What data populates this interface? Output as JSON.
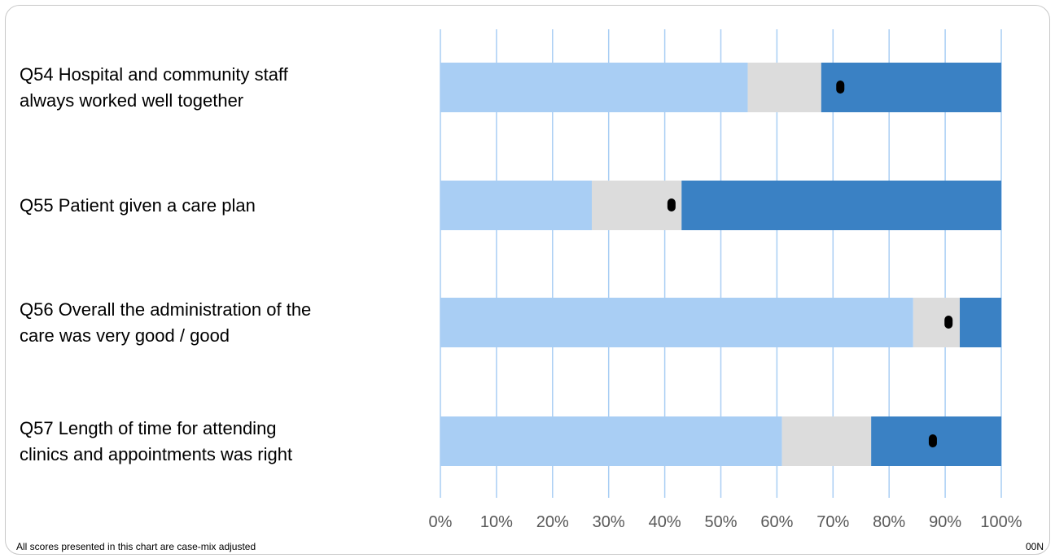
{
  "chart_data": {
    "type": "bar",
    "orientation": "horizontal",
    "stacked": true,
    "categories": [
      "Q54 Hospital and community staff\nalways worked well together",
      "Q55 Patient given a care plan",
      "Q56 Overall the administration of the\ncare was very good / good",
      "Q57 Length of time for attending\nclinics and appointments was right"
    ],
    "segments": [
      {
        "values": [
          54.8,
          27.0,
          84.3,
          60.9
        ],
        "color": "#a9cef4"
      },
      {
        "values": [
          13.1,
          16.0,
          8.3,
          15.9
        ],
        "color": "#dcdcdc"
      },
      {
        "values": [
          32.1,
          57.0,
          7.4,
          23.2
        ],
        "color": "#3a81c4"
      }
    ],
    "markers": [
      71.3,
      41.2,
      90.6,
      87.8
    ],
    "xlim": [
      0,
      100
    ],
    "x_ticks": [
      "0%",
      "10%",
      "20%",
      "30%",
      "40%",
      "50%",
      "60%",
      "70%",
      "80%",
      "90%",
      "100%"
    ],
    "grid": "vertical"
  },
  "footnote": "All scores presented in this chart are case-mix adjusted",
  "code": "00N"
}
